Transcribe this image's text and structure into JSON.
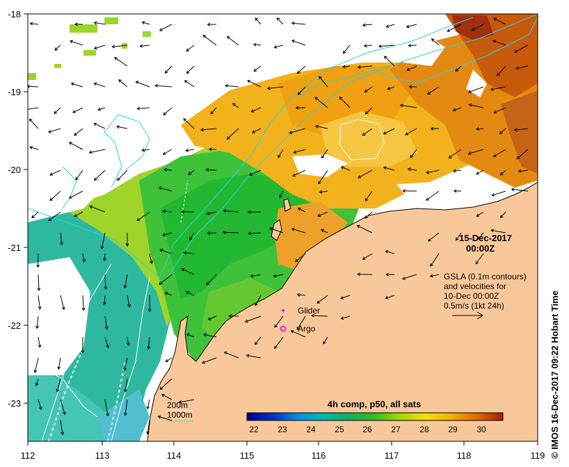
{
  "map": {
    "date": "15-Dec-2017",
    "time": "00:00Z",
    "gsla_lines": [
      "GSLA (0.1m contours)",
      "and velocities for",
      "10-Dec 00:00Z",
      "0.5m/s (1kt 24h)"
    ],
    "legend": {
      "glider": "Glider",
      "argo": "Argo",
      "iso200": "200m",
      "iso1000": "1000m"
    },
    "colorbar_title": "4h comp, p50, all sats",
    "colorbar_ticks": [
      "22",
      "23",
      "24",
      "25",
      "26",
      "27",
      "28",
      "29",
      "30"
    ],
    "lon_ticks": [
      "112",
      "113",
      "114",
      "115",
      "116",
      "117",
      "118",
      "119"
    ],
    "lat_ticks": [
      "-18",
      "-19",
      "-20",
      "-21",
      "-22",
      "-23"
    ],
    "credit": "© IMOS 16-Dec-2017 09:22 Hobart Time",
    "colors": {
      "land": "#f9c89a",
      "frame": "#000000",
      "iso200": "#ffffff",
      "iso1000": "#29d3df",
      "glider": "#e026e0",
      "argo": "#e026e0"
    }
  }
}
